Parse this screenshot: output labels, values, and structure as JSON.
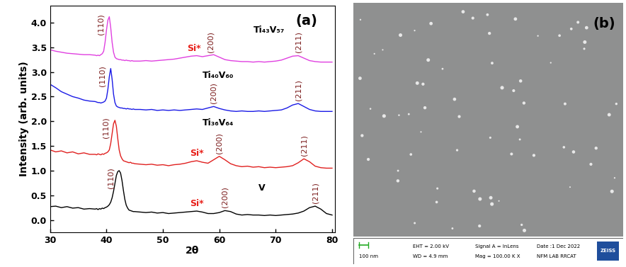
{
  "chart_data": {
    "type": "line",
    "label": "(a)",
    "x_label": "2θ",
    "y_label": "Intensity (arb. units)",
    "xlim": [
      30,
      80.5
    ],
    "ylim": [
      -0.25,
      4.35
    ],
    "xticks": [
      30,
      40,
      50,
      60,
      70,
      80
    ],
    "yticks": [
      {
        "value": 0,
        "label": "0.0"
      },
      {
        "value": 0.5,
        "label": "0.5"
      },
      {
        "value": 1,
        "label": "1.0"
      },
      {
        "value": 1.5,
        "label": "1.5"
      },
      {
        "value": 2,
        "label": "2.0"
      },
      {
        "value": 2.5,
        "label": "2.5"
      },
      {
        "value": 3,
        "label": "3.0"
      },
      {
        "value": 3.5,
        "label": "3.5"
      },
      {
        "value": 4,
        "label": "4.0"
      }
    ],
    "grid": false,
    "x": [
      30,
      31,
      32,
      33,
      34,
      35,
      36,
      37,
      38,
      38.25,
      38.5,
      38.75,
      39,
      39.25,
      39.5,
      39.75,
      40,
      40.25,
      40.5,
      40.75,
      41,
      41.25,
      41.5,
      41.75,
      42,
      42.25,
      42.5,
      42.75,
      43,
      43.25,
      43.5,
      43.75,
      44,
      44.25,
      44.5,
      44.75,
      45,
      46,
      47,
      48,
      49,
      50,
      51,
      52,
      53,
      54,
      55,
      56,
      57,
      58,
      59,
      60,
      61,
      62,
      63,
      64,
      65,
      66,
      67,
      68,
      69,
      70,
      71,
      72,
      73,
      74,
      75,
      76,
      77,
      78,
      79,
      80
    ],
    "series": [
      {
        "name": "V",
        "color": "#000000",
        "values": [
          0.27,
          0.28,
          0.25,
          0.27,
          0.24,
          0.25,
          0.22,
          0.23,
          0.22,
          0.23,
          0.21,
          0.23,
          0.22,
          0.24,
          0.23,
          0.25,
          0.26,
          0.28,
          0.31,
          0.36,
          0.45,
          0.58,
          0.74,
          0.9,
          0.98,
          1.0,
          0.95,
          0.8,
          0.6,
          0.42,
          0.3,
          0.24,
          0.2,
          0.19,
          0.18,
          0.17,
          0.17,
          0.16,
          0.15,
          0.16,
          0.14,
          0.15,
          0.13,
          0.14,
          0.15,
          0.16,
          0.17,
          0.18,
          0.16,
          0.13,
          0.13,
          0.15,
          0.19,
          0.17,
          0.12,
          0.1,
          0.11,
          0.1,
          0.1,
          0.09,
          0.1,
          0.09,
          0.1,
          0.11,
          0.12,
          0.14,
          0.18,
          0.25,
          0.28,
          0.22,
          0.13,
          0.1
        ],
        "annotations": [
          {
            "text": "(110)",
            "x": 42.2,
            "color": "#7b1c1c"
          },
          {
            "text": "Si*",
            "x": 56,
            "color": "#e8201a"
          },
          {
            "text": "(200)",
            "x": 61,
            "color": "#7b1c1c"
          },
          {
            "text": "(211)",
            "x": 77,
            "color": "#7b1c1c"
          }
        ]
      },
      {
        "name": "Ti₃₆V₆₄",
        "color": "#e0201f",
        "values": [
          1.42,
          1.38,
          1.4,
          1.36,
          1.38,
          1.34,
          1.36,
          1.33,
          1.33,
          1.32,
          1.34,
          1.33,
          1.32,
          1.34,
          1.33,
          1.35,
          1.36,
          1.38,
          1.42,
          1.55,
          1.75,
          1.95,
          2.02,
          1.9,
          1.65,
          1.42,
          1.3,
          1.24,
          1.2,
          1.19,
          1.18,
          1.17,
          1.16,
          1.17,
          1.15,
          1.15,
          1.14,
          1.13,
          1.12,
          1.13,
          1.11,
          1.12,
          1.1,
          1.12,
          1.13,
          1.15,
          1.18,
          1.2,
          1.17,
          1.15,
          1.22,
          1.29,
          1.22,
          1.14,
          1.1,
          1.08,
          1.09,
          1.07,
          1.08,
          1.06,
          1.07,
          1.06,
          1.07,
          1.08,
          1.1,
          1.16,
          1.24,
          1.18,
          1.09,
          1.06,
          1.05,
          1.05
        ],
        "annotations": [
          {
            "text": "(110)",
            "x": 41.3,
            "color": "#7b1c1c"
          },
          {
            "text": "Si*",
            "x": 56,
            "color": "#e8201a"
          },
          {
            "text": "(200)",
            "x": 60,
            "color": "#7b1c1c"
          },
          {
            "text": "(211)",
            "x": 75,
            "color": "#7b1c1c"
          }
        ]
      },
      {
        "name": "Ti₄₀V₆₀",
        "color": "#1a1ae6",
        "values": [
          2.75,
          2.68,
          2.6,
          2.55,
          2.5,
          2.47,
          2.43,
          2.41,
          2.4,
          2.39,
          2.38,
          2.38,
          2.37,
          2.38,
          2.39,
          2.41,
          2.47,
          2.65,
          2.9,
          3.07,
          2.85,
          2.55,
          2.38,
          2.31,
          2.29,
          2.28,
          2.27,
          2.27,
          2.26,
          2.26,
          2.25,
          2.26,
          2.25,
          2.25,
          2.24,
          2.25,
          2.24,
          2.24,
          2.23,
          2.24,
          2.22,
          2.23,
          2.22,
          2.23,
          2.22,
          2.23,
          2.24,
          2.25,
          2.24,
          2.27,
          2.3,
          2.26,
          2.23,
          2.21,
          2.2,
          2.21,
          2.2,
          2.2,
          2.21,
          2.2,
          2.21,
          2.22,
          2.23,
          2.27,
          2.33,
          2.36,
          2.3,
          2.24,
          2.21,
          2.2,
          2.2,
          2.2
        ],
        "annotations": [
          {
            "text": "(110)",
            "x": 40.7,
            "color": "#7b1c1c"
          },
          {
            "text": "(200)",
            "x": 59,
            "color": "#7b1c1c"
          },
          {
            "text": "(211)",
            "x": 74,
            "color": "#7b1c1c"
          }
        ]
      },
      {
        "name": "Ti₄₃V₅₇",
        "color": "#e040e0",
        "values": [
          3.45,
          3.42,
          3.4,
          3.38,
          3.37,
          3.36,
          3.35,
          3.35,
          3.34,
          3.33,
          3.34,
          3.33,
          3.35,
          3.37,
          3.42,
          3.6,
          3.85,
          4.05,
          4.12,
          3.9,
          3.6,
          3.4,
          3.3,
          3.27,
          3.26,
          3.25,
          3.25,
          3.24,
          3.24,
          3.23,
          3.24,
          3.23,
          3.23,
          3.22,
          3.23,
          3.22,
          3.22,
          3.22,
          3.23,
          3.22,
          3.23,
          3.24,
          3.25,
          3.26,
          3.28,
          3.3,
          3.32,
          3.33,
          3.31,
          3.33,
          3.35,
          3.3,
          3.25,
          3.23,
          3.22,
          3.21,
          3.21,
          3.2,
          3.21,
          3.2,
          3.21,
          3.22,
          3.24,
          3.28,
          3.32,
          3.33,
          3.28,
          3.23,
          3.21,
          3.2,
          3.2,
          3.2
        ],
        "annotations": [
          {
            "text": "(110)",
            "x": 40.5,
            "color": "#7b1c1c"
          },
          {
            "text": "Si*",
            "x": 55.5,
            "color": "#e8201a"
          },
          {
            "text": "(200)",
            "x": 58.5,
            "color": "#7b1c1c"
          },
          {
            "text": "(211)",
            "x": 74,
            "color": "#7b1c1c"
          }
        ]
      }
    ]
  },
  "image": {
    "label": "(b)",
    "scale_bar": "100 nm",
    "info": [
      [
        "EHT = 2.00 kV",
        "WD = 4.9 mm"
      ],
      [
        "Signal A = InLens",
        "Mag = 100.00 K X"
      ],
      [
        "Date :1 Dec 2022",
        "NFM LAB RRCAT"
      ]
    ],
    "logo": "ZEISS"
  }
}
